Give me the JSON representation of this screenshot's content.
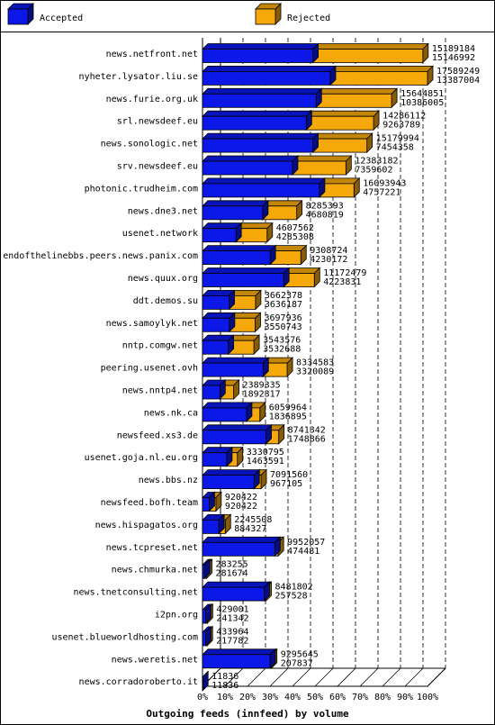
{
  "colors": {
    "accepted": "#0b18e8",
    "rejected": "#f5a80a",
    "grid": "#000000"
  },
  "chart_data": {
    "type": "bar",
    "orientation": "horizontal",
    "stacked": true,
    "title": "Outgoing feeds (innfeed) by volume",
    "xlabel": "",
    "ylabel": "",
    "xlim": [
      0,
      100
    ],
    "x_unit": "%",
    "grid": "vertical dashed",
    "legend_position": "top",
    "x_ticks": [
      "0%",
      "10%",
      "20%",
      "30%",
      "40%",
      "50%",
      "60%",
      "70%",
      "80%",
      "90%",
      "100%"
    ],
    "series": [
      {
        "name": "Accepted"
      },
      {
        "name": "Rejected"
      }
    ],
    "rows": [
      {
        "category": "news.netfront.net",
        "accepted": 15189184,
        "rejected": 15146992
      },
      {
        "category": "nyheter.lysator.liu.se",
        "accepted": 17589249,
        "rejected": 13387004
      },
      {
        "category": "news.furie.org.uk",
        "accepted": 15644851,
        "rejected": 10386005
      },
      {
        "category": "srl.newsdeef.eu",
        "accepted": 14286112,
        "rejected": 9263789
      },
      {
        "category": "news.sonologic.net",
        "accepted": 15179994,
        "rejected": 7454358
      },
      {
        "category": "srv.newsdeef.eu",
        "accepted": 12383182,
        "rejected": 7359602
      },
      {
        "category": "photonic.trudheim.com",
        "accepted": 16093943,
        "rejected": 4757221
      },
      {
        "category": "news.dne3.net",
        "accepted": 8285393,
        "rejected": 4680819
      },
      {
        "category": "usenet.network",
        "accepted": 4607562,
        "rejected": 4285308
      },
      {
        "category": "endofthelinebbs.peers.news.panix.com",
        "accepted": 9308724,
        "rejected": 4230172
      },
      {
        "category": "news.quux.org",
        "accepted": 11172479,
        "rejected": 4223831
      },
      {
        "category": "ddt.demos.su",
        "accepted": 3662378,
        "rejected": 3636187
      },
      {
        "category": "news.samoylyk.net",
        "accepted": 3697936,
        "rejected": 3550743
      },
      {
        "category": "nntp.comgw.net",
        "accepted": 3543576,
        "rejected": 3532688
      },
      {
        "category": "peering.usenet.ovh",
        "accepted": 8334583,
        "rejected": 3320089
      },
      {
        "category": "news.nntp4.net",
        "accepted": 2389335,
        "rejected": 1892317
      },
      {
        "category": "news.nk.ca",
        "accepted": 6059964,
        "rejected": 1836895
      },
      {
        "category": "newsfeed.xs3.de",
        "accepted": 8741342,
        "rejected": 1748866
      },
      {
        "category": "usenet.goja.nl.eu.org",
        "accepted": 3330795,
        "rejected": 1463591
      },
      {
        "category": "news.bbs.nz",
        "accepted": 7091560,
        "rejected": 967105
      },
      {
        "category": "newsfeed.bofh.team",
        "accepted": 920422,
        "rejected": 920422
      },
      {
        "category": "news.hispagatos.org",
        "accepted": 2245508,
        "rejected": 884327
      },
      {
        "category": "news.tcpreset.net",
        "accepted": 9952057,
        "rejected": 474481
      },
      {
        "category": "news.chmurka.net",
        "accepted": 283255,
        "rejected": 281674
      },
      {
        "category": "news.tnetconsulting.net",
        "accepted": 8481802,
        "rejected": 257528
      },
      {
        "category": "i2pn.org",
        "accepted": 429001,
        "rejected": 241342
      },
      {
        "category": "usenet.blueworldhosting.com",
        "accepted": 433964,
        "rejected": 217782
      },
      {
        "category": "news.weretis.net",
        "accepted": 9295645,
        "rejected": 207837
      },
      {
        "category": "news.corradoroberto.it",
        "accepted": 11836,
        "rejected": 11836
      }
    ]
  }
}
